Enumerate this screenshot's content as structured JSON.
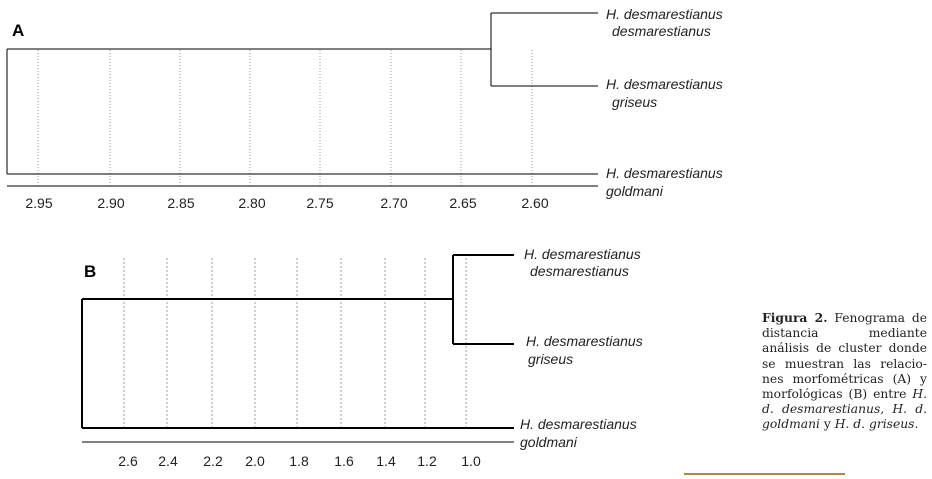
{
  "panels": [
    {
      "label": "A",
      "ticks": [
        "2.95",
        "2.90",
        "2.85",
        "2.80",
        "2.75",
        "2.70",
        "2.65",
        "2.60"
      ],
      "taxa": [
        {
          "line1": "H. desmarestianus",
          "line2": "desmarestianus"
        },
        {
          "line1": "H. desmarestianus",
          "line2": "griseus"
        },
        {
          "line1": "H. desmarestianus",
          "line2": "goldmani"
        }
      ],
      "merge_heights": [
        2.63,
        2.98
      ]
    },
    {
      "label": "B",
      "ticks": [
        "2.6",
        "2.4",
        "2.2",
        "2.0",
        "1.8",
        "1.6",
        "1.4",
        "1.2",
        "1.0"
      ],
      "taxa": [
        {
          "line1": "H. desmarestianus",
          "line2": "desmarestianus"
        },
        {
          "line1": "H. desmarestianus",
          "line2": "griseus"
        },
        {
          "line1": "H. desmarestianus",
          "line2": "goldmani"
        }
      ],
      "merge_heights": [
        1.1,
        2.8
      ]
    }
  ],
  "caption": {
    "figure_label": "Figura 2.",
    "text": "Fenograma de distancia mediante análisis de cluster donde se muestran las relacio-nes morfométricas (A) y morfológicas (B) entre",
    "taxa_text": "H. d. desmarestianus, H. d. goldmani",
    "conjunction": "y",
    "last_taxon": "H. d. griseus",
    "end": "."
  },
  "colors": {
    "line": "#000000",
    "grid": "#9a9a9a",
    "text": "#222222",
    "rule": "#b08a3c"
  }
}
